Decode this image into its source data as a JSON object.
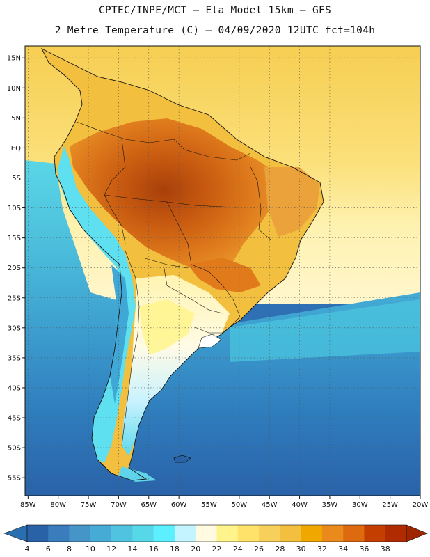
{
  "header": {
    "line1": "CPTEC/INPE/MCT –  Eta Model 15km – GFS",
    "line2": "2 Metre Temperature (C) – 04/09/2020 12UTC fct=104h"
  },
  "map": {
    "lat_labels": [
      "15N",
      "10N",
      "5N",
      "EQ",
      "5S",
      "10S",
      "15S",
      "20S",
      "25S",
      "30S",
      "35S",
      "40S",
      "45S",
      "50S",
      "55S"
    ],
    "lat_values": [
      15,
      10,
      5,
      0,
      -5,
      -10,
      -15,
      -20,
      -25,
      -30,
      -35,
      -40,
      -45,
      -50,
      -55
    ],
    "lon_labels": [
      "85W",
      "80W",
      "75W",
      "70W",
      "65W",
      "60W",
      "55W",
      "50W",
      "45W",
      "40W",
      "35W",
      "30W",
      "25W",
      "20W"
    ],
    "lon_values": [
      -85,
      -80,
      -75,
      -70,
      -65,
      -60,
      -55,
      -50,
      -45,
      -40,
      -35,
      -30,
      -25,
      -20
    ],
    "extent": {
      "lon_min": -85.5,
      "lon_max": -20,
      "lat_min": -58,
      "lat_max": 17
    },
    "grid": "dotted"
  },
  "colorbar": {
    "labels": [
      "4",
      "6",
      "8",
      "10",
      "12",
      "14",
      "16",
      "18",
      "20",
      "22",
      "24",
      "26",
      "28",
      "30",
      "32",
      "34",
      "36",
      "38"
    ],
    "colors": [
      "#2a62a8",
      "#3a7dbd",
      "#4695c9",
      "#46acd6",
      "#4fc3e0",
      "#57d8e8",
      "#5cefff",
      "#c4f4ff",
      "#fffae0",
      "#fff48c",
      "#ffe26a",
      "#f7d05c",
      "#f2bf3e",
      "#f0a800",
      "#ea8a1c",
      "#de6a10",
      "#c43e00",
      "#b02c00"
    ],
    "under_color": "#2a6fb0",
    "over_color": "#a02600"
  }
}
